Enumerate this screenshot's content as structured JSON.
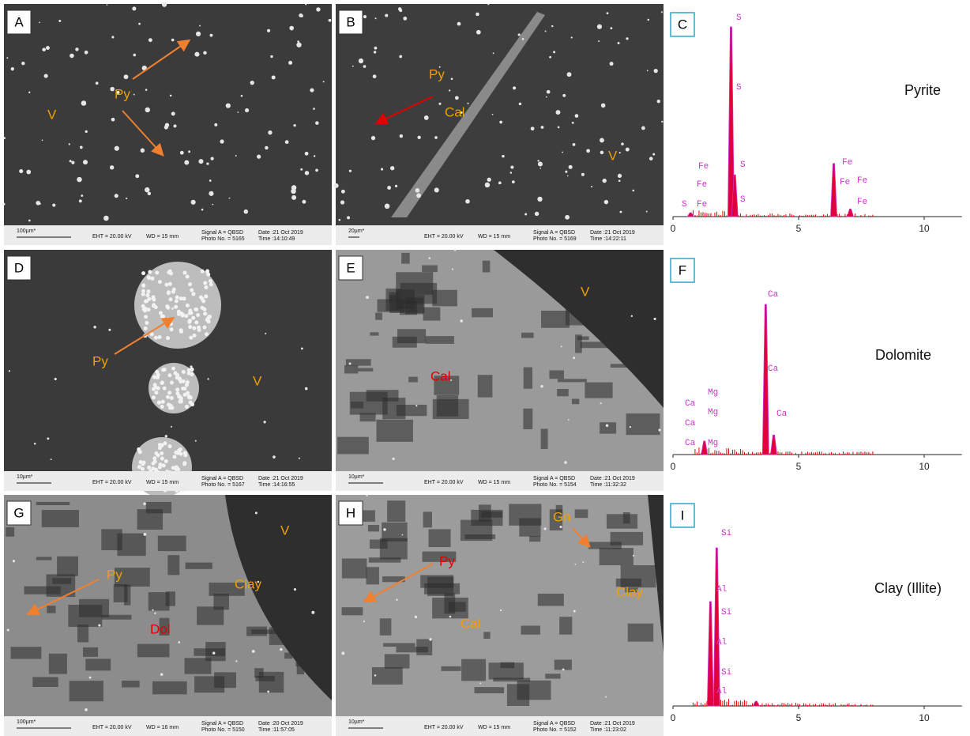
{
  "panels": [
    {
      "letter": "A",
      "labels": [
        {
          "text": "Py",
          "color": "#f0a000"
        },
        {
          "text": "V",
          "color": "#f0a000"
        }
      ],
      "info": {
        "scale": "100µm*",
        "eht": "EHT = 20.00 kV",
        "wd": "WD =  15 mm",
        "signal": "Signal A = QBSD",
        "photo": "Photo No. = 5165",
        "date": "Date :21 Oct 2019",
        "time": "Time :14:10:49"
      }
    },
    {
      "letter": "B",
      "labels": [
        {
          "text": "Py",
          "color": "#f0a000"
        },
        {
          "text": "Cal",
          "color": "#f0a000"
        },
        {
          "text": "V",
          "color": "#f0a000"
        }
      ],
      "info": {
        "scale": "20µm*",
        "eht": "EHT = 20.00 kV",
        "wd": "WD =  15 mm",
        "signal": "Signal A = QBSD",
        "photo": "Photo No. = 5169",
        "date": "Date :21 Oct 2019",
        "time": "Time :14:22:11"
      }
    },
    {
      "letter": "D",
      "labels": [
        {
          "text": "Py",
          "color": "#f0a000"
        },
        {
          "text": "V",
          "color": "#f0a000"
        }
      ],
      "info": {
        "scale": "10µm*",
        "eht": "EHT = 20.00 kV",
        "wd": "WD =  15 mm",
        "signal": "Signal A = QBSD",
        "photo": "Photo No. = 5167",
        "date": "Date :21 Oct 2019",
        "time": "Time :14:16:55"
      }
    },
    {
      "letter": "E",
      "labels": [
        {
          "text": "Cal",
          "color": "#e00000"
        },
        {
          "text": "V",
          "color": "#f0a000"
        }
      ],
      "info": {
        "scale": "10µm*",
        "eht": "EHT = 20.00 kV",
        "wd": "WD =  15 mm",
        "signal": "Signal A = QBSD",
        "photo": "Photo No. = 5154",
        "date": "Date :21 Oct 2019",
        "time": "Time :11:32:32"
      }
    },
    {
      "letter": "G",
      "labels": [
        {
          "text": "Py",
          "color": "#f0a000"
        },
        {
          "text": "Dol",
          "color": "#e00000"
        },
        {
          "text": "Clay",
          "color": "#f0a000"
        },
        {
          "text": "V",
          "color": "#f0a000"
        }
      ],
      "info": {
        "scale": "100µm*",
        "eht": "EHT = 20.00 kV",
        "wd": "WD =  16 mm",
        "signal": "Signal A = QBSD",
        "photo": "Photo No. = 5150",
        "date": "Date :20 Oct 2019",
        "time": "Time :11:57:05"
      }
    },
    {
      "letter": "H",
      "labels": [
        {
          "text": "Py",
          "color": "#e00000"
        },
        {
          "text": "Gn",
          "color": "#f0a000"
        },
        {
          "text": "Clay",
          "color": "#f0a000"
        },
        {
          "text": "Cal",
          "color": "#f0a000"
        }
      ],
      "info": {
        "scale": "10µm*",
        "eht": "EHT = 20.00 kV",
        "wd": "WD =  15 mm",
        "signal": "Signal A = QBSD",
        "photo": "Photo No. = 5152",
        "date": "Date :21 Oct 2019",
        "time": "Time :11:23:02"
      }
    }
  ],
  "spectra": [
    {
      "letter": "C",
      "mineral": "Pyrite",
      "xlim": [
        0,
        11.5
      ],
      "ylim": [
        0,
        100
      ],
      "xticks": [
        0,
        5,
        10
      ],
      "peaks": [
        {
          "energy": 0.7,
          "intensity": 2
        },
        {
          "energy": 2.31,
          "intensity": 100
        },
        {
          "energy": 2.46,
          "intensity": 22
        },
        {
          "energy": 6.4,
          "intensity": 28
        },
        {
          "energy": 7.06,
          "intensity": 4
        }
      ],
      "peak_labels": [
        "S",
        "S",
        "S",
        "S",
        "Fe",
        "Fe",
        "S",
        "Fe",
        "Fe",
        "Fe",
        "Fe",
        "Fe"
      ]
    },
    {
      "letter": "F",
      "mineral": "Dolomite",
      "xlim": [
        0,
        11.5
      ],
      "ylim": [
        0,
        100
      ],
      "xticks": [
        0,
        5,
        10
      ],
      "peaks": [
        {
          "energy": 1.25,
          "intensity": 9
        },
        {
          "energy": 3.69,
          "intensity": 100
        },
        {
          "energy": 4.01,
          "intensity": 13
        }
      ],
      "peak_labels": [
        "Ca",
        "Ca",
        "Ca",
        "Ca",
        "Ca",
        "Ca",
        "Mg",
        "Mg",
        "Mg"
      ]
    },
    {
      "letter": "I",
      "mineral": "Clay (Illite)",
      "xlim": [
        0,
        11.5
      ],
      "ylim": [
        0,
        100
      ],
      "xticks": [
        0,
        5,
        10
      ],
      "peaks": [
        {
          "energy": 1.49,
          "intensity": 66
        },
        {
          "energy": 1.74,
          "intensity": 100
        },
        {
          "energy": 3.31,
          "intensity": 3
        }
      ],
      "peak_labels": [
        "Si",
        "Al",
        "Si",
        "Al",
        "Si",
        "Al"
      ]
    }
  ]
}
